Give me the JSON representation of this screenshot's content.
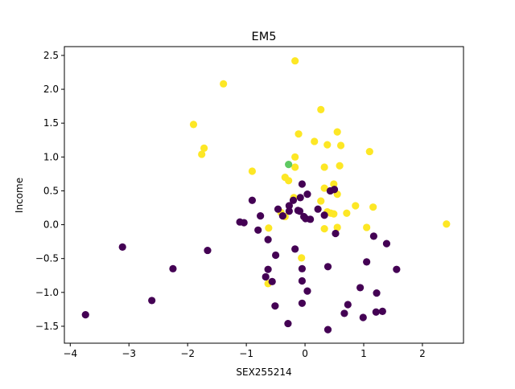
{
  "chart_data": {
    "type": "scatter",
    "title": "EM5",
    "xlabel": "SEX255214",
    "ylabel": "Income",
    "xlim": [
      -4.1,
      2.7
    ],
    "ylim": [
      -1.75,
      2.63
    ],
    "xticks": [
      -4,
      -3,
      -2,
      -1,
      0,
      1,
      2
    ],
    "xtick_labels": [
      "−4",
      "−3",
      "−2",
      "−1",
      "0",
      "1",
      "2"
    ],
    "yticks": [
      -1.5,
      -1.0,
      -0.5,
      0.0,
      0.5,
      1.0,
      1.5,
      2.0,
      2.5
    ],
    "ytick_labels": [
      "−1.5",
      "−1.0",
      "−0.5",
      "0.0",
      "0.5",
      "1.0",
      "1.5",
      "2.0",
      "2.5"
    ],
    "grid": false,
    "colors": {
      "yellow": "#fde725",
      "purple": "#440154",
      "green": "#5ec962"
    },
    "series": [
      {
        "color": "#fde725",
        "x": [
          -0.17,
          -1.39,
          -1.9,
          -1.72,
          -1.76,
          0.27,
          0.55,
          -0.11,
          0.16,
          0.38,
          0.61,
          1.1,
          -0.17,
          -0.17,
          0.33,
          0.59,
          -0.9,
          -0.34,
          -0.28,
          0.49,
          0.33,
          0.55,
          -0.19,
          0.27,
          0.38,
          0.86,
          1.16,
          0.44,
          0.49,
          0.71,
          1.05,
          2.41,
          -0.62,
          -0.06,
          0.33,
          0.55,
          -0.41,
          -0.34,
          -0.63
        ],
        "y": [
          2.42,
          2.08,
          1.48,
          1.13,
          1.04,
          1.7,
          1.37,
          1.34,
          1.23,
          1.18,
          1.17,
          1.08,
          1.0,
          0.85,
          0.85,
          0.87,
          0.79,
          0.7,
          0.65,
          0.6,
          0.54,
          0.45,
          0.4,
          0.35,
          0.19,
          0.28,
          0.26,
          0.17,
          0.16,
          0.17,
          -0.04,
          0.01,
          -0.05,
          -0.49,
          -0.06,
          -0.04,
          0.18,
          0.12,
          -0.87
        ]
      },
      {
        "color": "#440154",
        "x": [
          -0.05,
          0.04,
          -0.08,
          -0.2,
          -0.9,
          -1.11,
          -1.04,
          -0.27,
          -0.46,
          -0.09,
          -0.76,
          -0.8,
          -0.02,
          -0.27,
          -0.38,
          0.01,
          -0.12,
          0.09,
          0.22,
          0.33,
          0.43,
          0.5,
          -0.63,
          -0.5,
          -0.17,
          -0.05,
          -0.05,
          0.04,
          -0.56,
          -0.63,
          -0.67,
          -0.05,
          -0.51,
          -0.29,
          0.39,
          0.52,
          1.05,
          1.17,
          1.39,
          1.56,
          1.22,
          0.94,
          0.73,
          0.67,
          0.99,
          1.21,
          1.32,
          0.39,
          -1.66,
          -2.25,
          -2.61,
          -3.11,
          -3.74
        ],
        "y": [
          0.6,
          0.45,
          0.4,
          0.36,
          0.36,
          0.04,
          0.03,
          0.28,
          0.23,
          0.2,
          0.13,
          -0.08,
          0.12,
          0.2,
          0.13,
          0.09,
          0.21,
          0.08,
          0.23,
          0.14,
          0.5,
          0.52,
          -0.22,
          -0.45,
          -0.36,
          -0.65,
          -0.83,
          -0.98,
          -0.84,
          -0.66,
          -0.77,
          -1.16,
          -1.2,
          -1.46,
          -0.62,
          -0.13,
          -0.55,
          -0.17,
          -0.28,
          -0.66,
          -1.01,
          -0.93,
          -1.18,
          -1.31,
          -1.37,
          -1.29,
          -1.28,
          -1.55,
          -0.38,
          -0.65,
          -1.12,
          -0.33,
          -1.33
        ]
      },
      {
        "color": "#5ec962",
        "x": [
          -0.28
        ],
        "y": [
          0.89
        ]
      }
    ]
  }
}
